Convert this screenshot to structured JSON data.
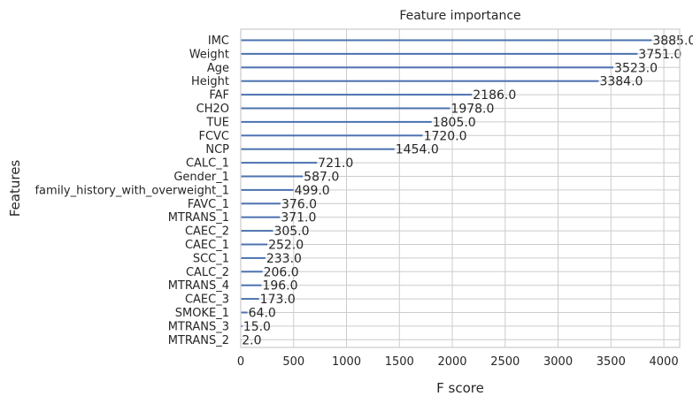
{
  "chart_data": {
    "type": "bar",
    "orientation": "horizontal",
    "title": "Feature importance",
    "xlabel": "F score",
    "ylabel": "Features",
    "xlim": [
      0,
      4150
    ],
    "xticks": [
      0,
      500,
      1000,
      1500,
      2000,
      2500,
      3000,
      3500,
      4000
    ],
    "grid": true,
    "bar_color": "#4c72b0",
    "categories": [
      "IMC",
      "Weight",
      "Age",
      "Height",
      "FAF",
      "CH2O",
      "TUE",
      "FCVC",
      "NCP",
      "CALC_1",
      "Gender_1",
      "family_history_with_overweight_1",
      "FAVC_1",
      "MTRANS_1",
      "CAEC_2",
      "CAEC_1",
      "SCC_1",
      "CALC_2",
      "MTRANS_4",
      "CAEC_3",
      "SMOKE_1",
      "MTRANS_3",
      "MTRANS_2"
    ],
    "values": [
      3885,
      3751,
      3523,
      3384,
      2186,
      1978,
      1805,
      1720,
      1454,
      721,
      587,
      499,
      376,
      371,
      305,
      252,
      233,
      206,
      196,
      173,
      64,
      15,
      2
    ],
    "value_labels": [
      "3885.0",
      "3751.0",
      "3523.0",
      "3384.0",
      "2186.0",
      "1978.0",
      "1805.0",
      "1720.0",
      "1454.0",
      "721.0",
      "587.0",
      "499.0",
      "376.0",
      "371.0",
      "305.0",
      "252.0",
      "233.0",
      "206.0",
      "196.0",
      "173.0",
      "64.0",
      "15.0",
      "2.0"
    ]
  }
}
